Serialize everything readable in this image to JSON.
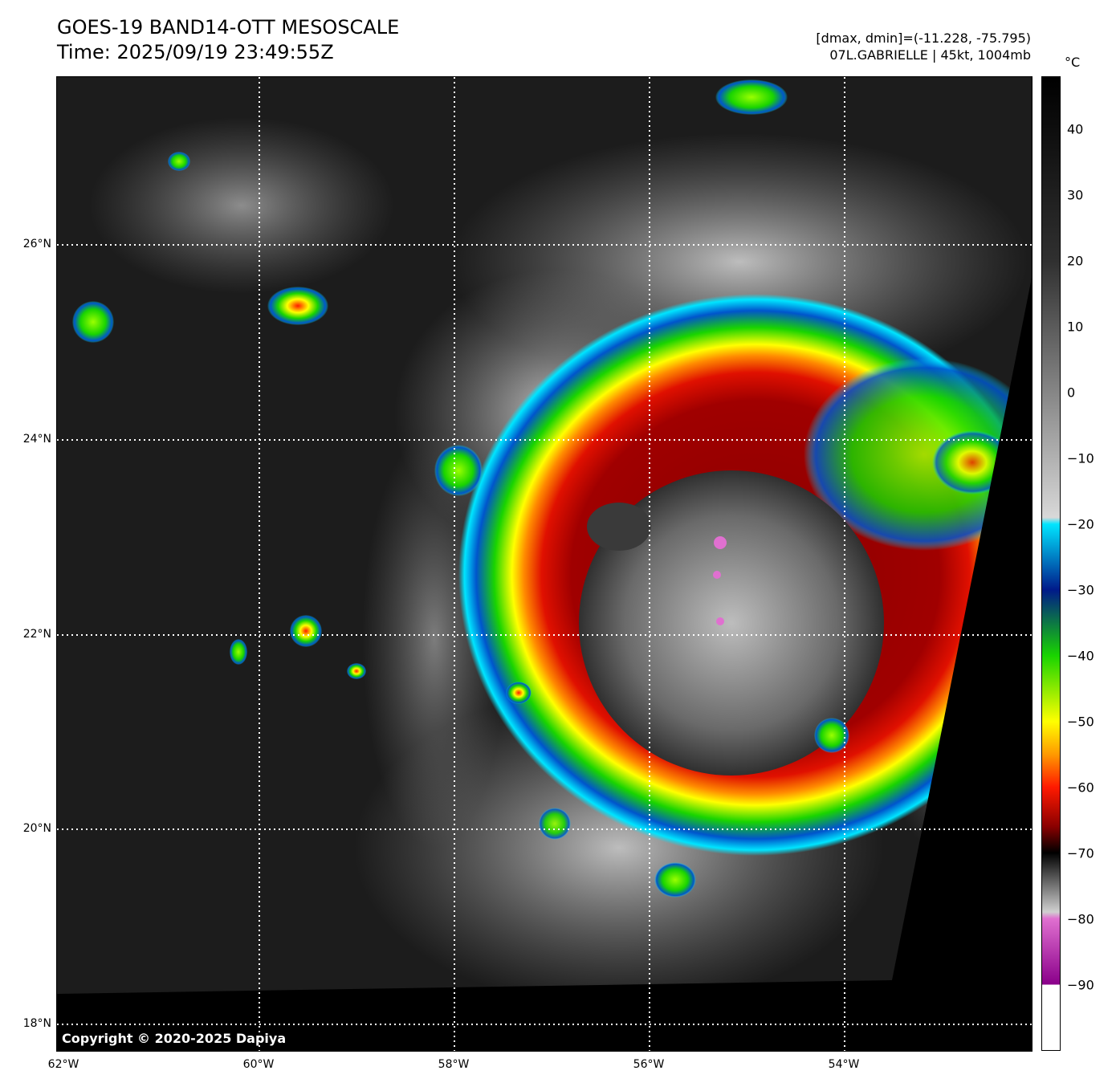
{
  "title_line1": "GOES-19 BAND14-OTT MESOSCALE",
  "title_line2": "Time: 2025/09/19 23:49:55Z",
  "info_line1": "[dmax, dmin]=(-11.228, -75.795)",
  "info_line2": "07L.GABRIELLE | 45kt, 1004mb",
  "copyright": "Copyright © 2020-2025 Dapiya",
  "lat_labels": [
    "26°N",
    "24°N",
    "22°N",
    "20°N",
    "18°N"
  ],
  "lon_labels": [
    "62°W",
    "60°W",
    "58°W",
    "56°W",
    "54°W"
  ],
  "colorbar": {
    "unit": "°C",
    "ticks": [
      "40",
      "30",
      "20",
      "10",
      "0",
      "−10",
      "−20",
      "−30",
      "−40",
      "−50",
      "−60",
      "−70",
      "−80",
      "−90"
    ],
    "stops": [
      {
        "value": 48,
        "color": "#000000"
      },
      {
        "value": 20,
        "color": "#303030"
      },
      {
        "value": -19,
        "color": "#d8d8d8"
      },
      {
        "value": -20,
        "color": "#00e5ff"
      },
      {
        "value": -30,
        "color": "#001a8a"
      },
      {
        "value": -40,
        "color": "#19d400"
      },
      {
        "value": -50,
        "color": "#ffff00"
      },
      {
        "value": -55,
        "color": "#ff9a00"
      },
      {
        "value": -60,
        "color": "#ff1a00"
      },
      {
        "value": -66,
        "color": "#8a0000"
      },
      {
        "value": -70,
        "color": "#000000"
      },
      {
        "value": -79,
        "color": "#d0d0d0"
      },
      {
        "value": -80,
        "color": "#e070d0"
      },
      {
        "value": -90,
        "color": "#8a008a"
      },
      {
        "value": -90.1,
        "color": "#ffffff"
      },
      {
        "value": -100,
        "color": "#ffffff"
      }
    ]
  },
  "colors": {
    "cold_red": "#8a0000",
    "red": "#e01000",
    "yellow": "#ffff00",
    "green": "#19d400",
    "blue": "#0055cc",
    "cyan": "#00e5ff",
    "eye_gray": "#5a5a5a",
    "cloud_gray": "#bdbdbd",
    "background": "#1c1c1c",
    "no_data": "#000000",
    "magenta": "#e070d0"
  }
}
